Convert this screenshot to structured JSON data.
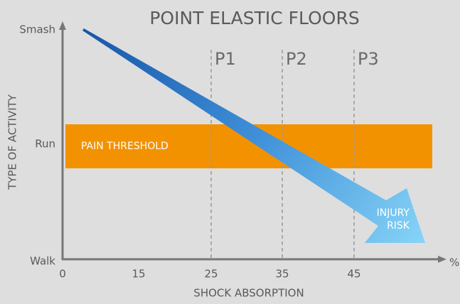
{
  "title": "POINT ELASTIC FLOORS",
  "x_axis": {
    "label": "SHOCK ABSORPTION",
    "ticks": [
      "0",
      "15",
      "25",
      "35",
      "45"
    ],
    "unit": "%"
  },
  "y_axis": {
    "label": "TYPE OF ACTIVITY",
    "ticks": [
      "Walk",
      "Run",
      "Smash"
    ]
  },
  "zones": [
    "P1",
    "P2",
    "P3"
  ],
  "band": {
    "label": "PAIN THRESHOLD"
  },
  "arrow": {
    "label": [
      "INJURY",
      "RISK"
    ]
  }
}
